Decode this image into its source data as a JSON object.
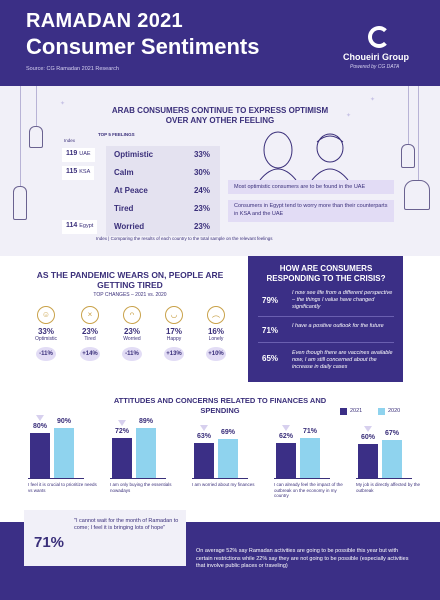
{
  "header": {
    "title_line1": "RAMADAN 2021",
    "title_line2": "Consumer Sentiments",
    "source": "Source: CG Ramadan 2021 Research",
    "logo_name": "Choueiri Group",
    "logo_tagline": "Powered by CG DATA"
  },
  "feelings": {
    "title": "ARAB CONSUMERS CONTINUE TO EXPRESS OPTIMISM OVER ANY OTHER FEELING",
    "top5_label": "TOP 5 FEELINGS",
    "index_label": "Index",
    "rows": [
      {
        "name": "Optimistic",
        "value": "33%"
      },
      {
        "name": "Calm",
        "value": "30%"
      },
      {
        "name": "At Peace",
        "value": "24%"
      },
      {
        "name": "Tired",
        "value": "23%"
      },
      {
        "name": "Worried",
        "value": "23%"
      }
    ],
    "index_badges": [
      {
        "index": "119",
        "country": "UAE"
      },
      {
        "index": "115",
        "country": "KSA"
      },
      {
        "index": "114",
        "country": "Egypt"
      }
    ],
    "index_note": "Index | Comparing the results of each country to the total sample on the relevant feelings",
    "optimistic_note": "Most optimistic consumers are to be found in the UAE",
    "worried_note": "Consumers in Egypt tend to worry more than their counterparts in KSA and the UAE"
  },
  "pandemic": {
    "title": "AS THE PANDEMIC WEARS ON, PEOPLE ARE GETTING TIRED",
    "subtitle": "TOP CHANGES – 2021 vs. 2020",
    "items": [
      {
        "pct": "33%",
        "label": "Optimistic",
        "change": "-11%",
        "icon": "smile-icon",
        "glyph": "☺"
      },
      {
        "pct": "23%",
        "label": "Tired",
        "change": "+14%",
        "icon": "tired-face-icon",
        "glyph": "×"
      },
      {
        "pct": "23%",
        "label": "Worried",
        "change": "-11%",
        "icon": "worried-face-icon",
        "glyph": "ᴖ"
      },
      {
        "pct": "17%",
        "label": "Happy",
        "change": "+13%",
        "icon": "happy-face-icon",
        "glyph": "◡"
      },
      {
        "pct": "16%",
        "label": "Lonely",
        "change": "+10%",
        "icon": "lonely-face-icon",
        "glyph": "︵"
      }
    ]
  },
  "responding": {
    "title": "HOW ARE CONSUMERS RESPONDING TO THE CRISIS?",
    "items": [
      {
        "pct": "79%",
        "text": "I now see life from a different perspective – the things I value have changed significantly"
      },
      {
        "pct": "71%",
        "text": "I have a positive outlook for the future"
      },
      {
        "pct": "65%",
        "text": "Even though there are vaccines available now, I am still concerned about the increase in daily cases"
      }
    ]
  },
  "attitudes": {
    "title": "ATTITUDES AND CONCERNS RELATED TO FINANCES AND SPENDING",
    "legend": [
      "2021",
      "2020"
    ],
    "colors": {
      "y2021": "#3b2f86",
      "y2020": "#8fd3ee"
    }
  },
  "chart_data": {
    "type": "bar",
    "title": "ATTITUDES AND CONCERNS RELATED TO FINANCES AND SPENDING",
    "categories": [
      "I feel it is crucial to prioritize needs vs wants",
      "I am only buying the essentials nowadays",
      "I am worried about my finances",
      "I can already feel the impact of the outbreak on the economy in my country",
      "My job is directly affected by the outbreak"
    ],
    "series": [
      {
        "name": "2021",
        "values": [
          80,
          72,
          63,
          62,
          60
        ]
      },
      {
        "name": "2020",
        "values": [
          90,
          89,
          69,
          71,
          67
        ]
      }
    ],
    "ylim": [
      0,
      100
    ],
    "unit": "%",
    "legend_position": "top-right"
  },
  "bottom": {
    "quote_pct": "71%",
    "quote": "\"I cannot wait for the month of Ramadan to come; I feel it is bringing lots of hope\"",
    "average_note": "On average 52% say Ramadan activities are going to be possible this year but with certain restrictions while 22% say they are not going to be possible (especially activities that involve public places or traveling)"
  }
}
